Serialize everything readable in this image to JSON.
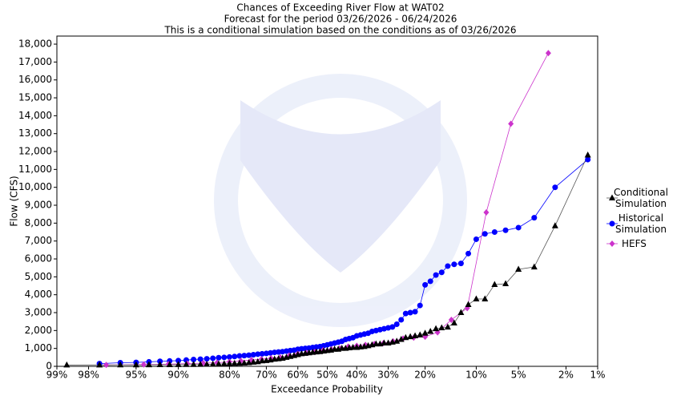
{
  "chart_data": {
    "type": "probability-scatter",
    "title": "Chances of Exceeding River Flow at WAT02",
    "subtitles": [
      "Forecast for the period 03/26/2026 - 06/24/2026",
      "This is a conditional simulation based on the conditions as of 03/26/2026"
    ],
    "x_label": "Exceedance Probability",
    "y_label": "Flow (CFS)",
    "xscale": "probability",
    "xlim": [
      99,
      1
    ],
    "xticks": [
      {
        "value": 99,
        "label": "99%"
      },
      {
        "value": 98,
        "label": "98%"
      },
      {
        "value": 95,
        "label": "95%"
      },
      {
        "value": 90,
        "label": "90%"
      },
      {
        "value": 80,
        "label": "80%"
      },
      {
        "value": 70,
        "label": "70%"
      },
      {
        "value": 60,
        "label": "60%"
      },
      {
        "value": 50,
        "label": "50%"
      },
      {
        "value": 40,
        "label": "40%"
      },
      {
        "value": 30,
        "label": "30%"
      },
      {
        "value": 20,
        "label": "20%"
      },
      {
        "value": 10,
        "label": "10%"
      },
      {
        "value": 5,
        "label": "5%"
      },
      {
        "value": 2,
        "label": "2%"
      },
      {
        "value": 1,
        "label": "1%"
      }
    ],
    "ylim": [
      0,
      18450
    ],
    "yticks": [
      0,
      {
        "value": 1000,
        "label": "1,000"
      },
      {
        "value": 2000,
        "label": "2,000"
      },
      {
        "value": 3000,
        "label": "3,000"
      },
      {
        "value": 4000,
        "label": "4,000"
      },
      {
        "value": 5000,
        "label": "5,000"
      },
      {
        "value": 6000,
        "label": "6,000"
      },
      {
        "value": 7000,
        "label": "7,000"
      },
      {
        "value": 8000,
        "label": "8,000"
      },
      {
        "value": 9000,
        "label": "9,000"
      },
      {
        "value": 10000,
        "label": "10,000"
      },
      {
        "value": 11000,
        "label": "11,000"
      },
      {
        "value": 12000,
        "label": "12,000"
      },
      {
        "value": 13000,
        "label": "13,000"
      },
      {
        "value": 14000,
        "label": "14,000"
      },
      {
        "value": 15000,
        "label": "15,000"
      },
      {
        "value": 16000,
        "label": "16,000"
      },
      {
        "value": 17000,
        "label": "17,000"
      },
      {
        "value": 18000,
        "label": "18,000"
      }
    ],
    "legend": "right",
    "series": [
      {
        "name": "Conditional Simulation",
        "color": "#000000",
        "line_color": "#555555",
        "marker": "triangle",
        "x": [
          1.25,
          2.5,
          3.75,
          5,
          6.25,
          7.5,
          8.75,
          10,
          11.25,
          12.5,
          13.75,
          15,
          16.25,
          17.5,
          18.75,
          20,
          21.25,
          22.5,
          23.75,
          25,
          26.25,
          27.5,
          28.75,
          30,
          31.25,
          32.5,
          33.75,
          35,
          36.25,
          37.5,
          38.75,
          40,
          41.25,
          42.5,
          43.75,
          45,
          46.25,
          47.5,
          48.75,
          50,
          51.25,
          52.5,
          53.75,
          55,
          56.25,
          57.5,
          58.75,
          60,
          61.25,
          62.5,
          63.75,
          65,
          66.25,
          67.5,
          68.75,
          70,
          71.25,
          72.5,
          73.75,
          75,
          76.25,
          77.5,
          78.75,
          80,
          81.25,
          82.5,
          83.75,
          85,
          86.25,
          87.5,
          88.75,
          90,
          91.25,
          92.5,
          93.75,
          95,
          96.25,
          97.5,
          98.75
        ],
        "values": [
          11800,
          7850,
          5550,
          5420,
          4610,
          4570,
          3760,
          3760,
          3450,
          3000,
          2420,
          2190,
          2150,
          2100,
          1950,
          1850,
          1750,
          1700,
          1650,
          1600,
          1500,
          1400,
          1350,
          1300,
          1300,
          1250,
          1250,
          1200,
          1150,
          1100,
          1080,
          1050,
          1050,
          1030,
          1000,
          1000,
          950,
          950,
          900,
          880,
          850,
          820,
          800,
          780,
          750,
          720,
          700,
          650,
          600,
          550,
          500,
          450,
          420,
          400,
          350,
          320,
          300,
          250,
          230,
          200,
          180,
          170,
          160,
          150,
          140,
          130,
          120,
          110,
          105,
          100,
          100,
          95,
          90,
          90,
          85,
          80,
          80,
          75,
          70
        ]
      },
      {
        "name": "Historical Simulation",
        "color": "#0000ff",
        "line_color": "#0000ff",
        "marker": "circle",
        "x": [
          1.25,
          2.5,
          3.75,
          5,
          6.25,
          7.5,
          8.75,
          10,
          11.25,
          12.5,
          13.75,
          15,
          16.25,
          17.5,
          18.75,
          20,
          21.25,
          22.5,
          23.75,
          25,
          26.25,
          27.5,
          28.75,
          30,
          31.25,
          32.5,
          33.75,
          35,
          36.25,
          37.5,
          38.75,
          40,
          41.25,
          42.5,
          43.75,
          45,
          46.25,
          47.5,
          48.75,
          50,
          51.25,
          52.5,
          53.75,
          55,
          56.25,
          57.5,
          58.75,
          60,
          61.25,
          62.5,
          63.75,
          65,
          66.25,
          67.5,
          68.75,
          70,
          71.25,
          72.5,
          73.75,
          75,
          76.25,
          77.5,
          78.75,
          80,
          81.25,
          82.5,
          83.75,
          85,
          86.25,
          87.5,
          88.75,
          90,
          91.25,
          92.5,
          93.75,
          95,
          96.25,
          97.5
        ],
        "values": [
          11550,
          10000,
          8300,
          7750,
          7600,
          7500,
          7400,
          7100,
          6300,
          5750,
          5700,
          5600,
          5250,
          5100,
          4750,
          4550,
          3400,
          3050,
          3000,
          2950,
          2600,
          2350,
          2200,
          2150,
          2100,
          2050,
          2000,
          1950,
          1850,
          1800,
          1750,
          1700,
          1600,
          1550,
          1500,
          1400,
          1350,
          1300,
          1250,
          1200,
          1150,
          1100,
          1080,
          1050,
          1020,
          1000,
          980,
          950,
          900,
          880,
          850,
          820,
          800,
          780,
          750,
          720,
          700,
          680,
          650,
          620,
          600,
          580,
          550,
          520,
          500,
          480,
          450,
          420,
          400,
          380,
          350,
          320,
          300,
          280,
          250,
          220,
          200,
          150
        ]
      },
      {
        "name": "HEFS",
        "color": "#cc33cc",
        "line_color": "#cc33cc",
        "marker": "diamond",
        "x": [
          2.86,
          5.71,
          8.57,
          11.43,
          14.29,
          17.14,
          20,
          22.86,
          25.71,
          28.57,
          31.43,
          34.29,
          37.14,
          40,
          42.86,
          45.71,
          48.57,
          51.43,
          54.29,
          57.14,
          60,
          62.86,
          65.71,
          68.57,
          71.43,
          74.29,
          77.14,
          80,
          82.86,
          85.71,
          88.57,
          91.43,
          94.29,
          97.14
        ],
        "values": [
          17500,
          13550,
          8600,
          3250,
          2600,
          1900,
          1650,
          1600,
          1550,
          1400,
          1300,
          1250,
          1200,
          1150,
          1100,
          1000,
          950,
          900,
          800,
          750,
          700,
          600,
          500,
          450,
          400,
          350,
          300,
          250,
          200,
          180,
          150,
          120,
          100,
          80
        ]
      }
    ]
  }
}
